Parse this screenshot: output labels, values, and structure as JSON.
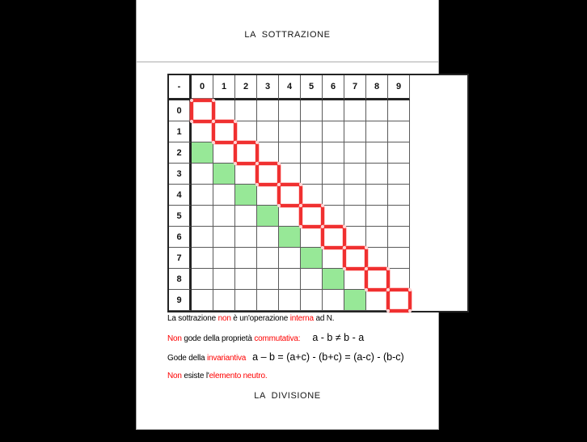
{
  "page": {
    "title": "LA  SOTTRAZIONE",
    "footer_title": "LA  DIVISIONE"
  },
  "table": {
    "corner_label": "-",
    "column_headers": [
      "0",
      "1",
      "2",
      "3",
      "4",
      "5",
      "6",
      "7",
      "8",
      "9"
    ],
    "row_headers": [
      "0",
      "1",
      "2",
      "3",
      "4",
      "5",
      "6",
      "7",
      "8",
      "9"
    ],
    "red_diagonal_cells": [
      [
        0,
        0
      ],
      [
        1,
        1
      ],
      [
        2,
        2
      ],
      [
        3,
        3
      ],
      [
        4,
        4
      ],
      [
        5,
        5
      ],
      [
        6,
        6
      ],
      [
        7,
        7
      ],
      [
        8,
        8
      ],
      [
        9,
        9
      ]
    ],
    "green_cells": [
      [
        2,
        0
      ],
      [
        3,
        1
      ],
      [
        4,
        2
      ],
      [
        5,
        3
      ],
      [
        6,
        4
      ],
      [
        7,
        5
      ],
      [
        8,
        6
      ],
      [
        9,
        7
      ]
    ],
    "colors": {
      "red_outline": "#f03030",
      "green_fill": "#97e897",
      "grid_line": "#5a5a5a",
      "heavy_line": "#232323",
      "red_text": "#fe0000"
    }
  },
  "notes": [
    {
      "segments": [
        {
          "text": "La sottrazione ",
          "style": "plain"
        },
        {
          "text": "non",
          "style": "red"
        },
        {
          "text": " è un'operazione ",
          "style": "plain"
        },
        {
          "text": "interna",
          "style": "red"
        },
        {
          "text": " ad N.",
          "style": "plain"
        }
      ]
    },
    {
      "segments": [
        {
          "text": "Non",
          "style": "red"
        },
        {
          "text": " gode della proprietà ",
          "style": "plain"
        },
        {
          "text": "commutativa:",
          "style": "red"
        },
        {
          "text": "  a - b ≠ b - a",
          "style": "formula"
        }
      ]
    },
    {
      "segments": [
        {
          "text": "Gode della ",
          "style": "plain"
        },
        {
          "text": "invariantiva",
          "style": "red"
        },
        {
          "text": "a – b = (a+c) - (b+c) = (a-c) - (b-c)",
          "style": "formula"
        }
      ]
    },
    {
      "segments": [
        {
          "text": "Non",
          "style": "red"
        },
        {
          "text": " esiste l'",
          "style": "plain"
        },
        {
          "text": "elemento neutro.",
          "style": "red"
        }
      ]
    }
  ]
}
